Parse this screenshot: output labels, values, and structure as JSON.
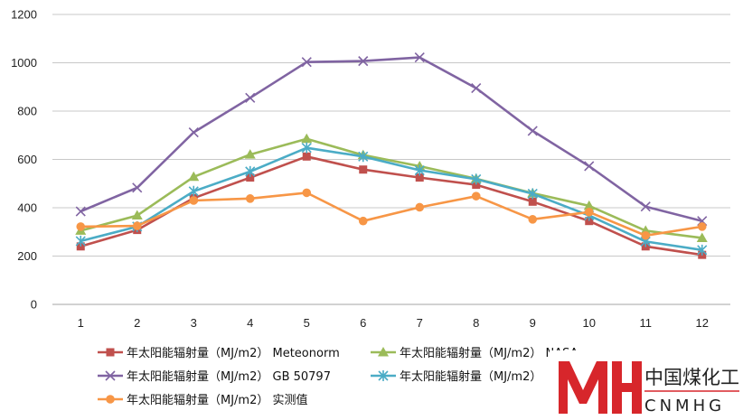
{
  "chart_data": {
    "type": "line",
    "categories": [
      "1",
      "2",
      "3",
      "4",
      "5",
      "6",
      "7",
      "8",
      "9",
      "10",
      "11",
      "12"
    ],
    "ylim": [
      0,
      1200
    ],
    "yticks": [
      0,
      200,
      400,
      600,
      800,
      1000,
      1200
    ],
    "grid": true,
    "legend_position": "bottom",
    "series": [
      {
        "name": "年太阳能辐射量（MJ/m2） Meteonorm",
        "color": "#C0504D",
        "marker": "square",
        "values": [
          240,
          308,
          440,
          525,
          612,
          558,
          525,
          495,
          425,
          345,
          240,
          205
        ]
      },
      {
        "name": "年太阳能辐射量（MJ/m2） NASA",
        "color": "#9BBB59",
        "marker": "triangle",
        "values": [
          305,
          368,
          528,
          620,
          685,
          618,
          572,
          520,
          460,
          408,
          305,
          275
        ]
      },
      {
        "name": "年太阳能辐射量（MJ/m2） GB 50797",
        "color": "#8064A2",
        "marker": "x",
        "values": [
          385,
          483,
          712,
          855,
          1003,
          1007,
          1022,
          895,
          718,
          572,
          405,
          345
        ]
      },
      {
        "name": "年太阳能辐射量（MJ/m2）",
        "color": "#4BACC6",
        "marker": "star",
        "values": [
          262,
          322,
          468,
          550,
          648,
          612,
          555,
          518,
          458,
          368,
          260,
          225
        ]
      },
      {
        "name": "年太阳能辐射量（MJ/m2） 实测值",
        "color": "#F79646",
        "marker": "circle",
        "values": [
          322,
          325,
          430,
          438,
          462,
          345,
          402,
          448,
          352,
          382,
          285,
          322
        ]
      }
    ]
  },
  "logo": {
    "mark": "MH",
    "name_cn": "中国煤化工",
    "name_en": "CNMHG",
    "color": "#D7262B"
  }
}
